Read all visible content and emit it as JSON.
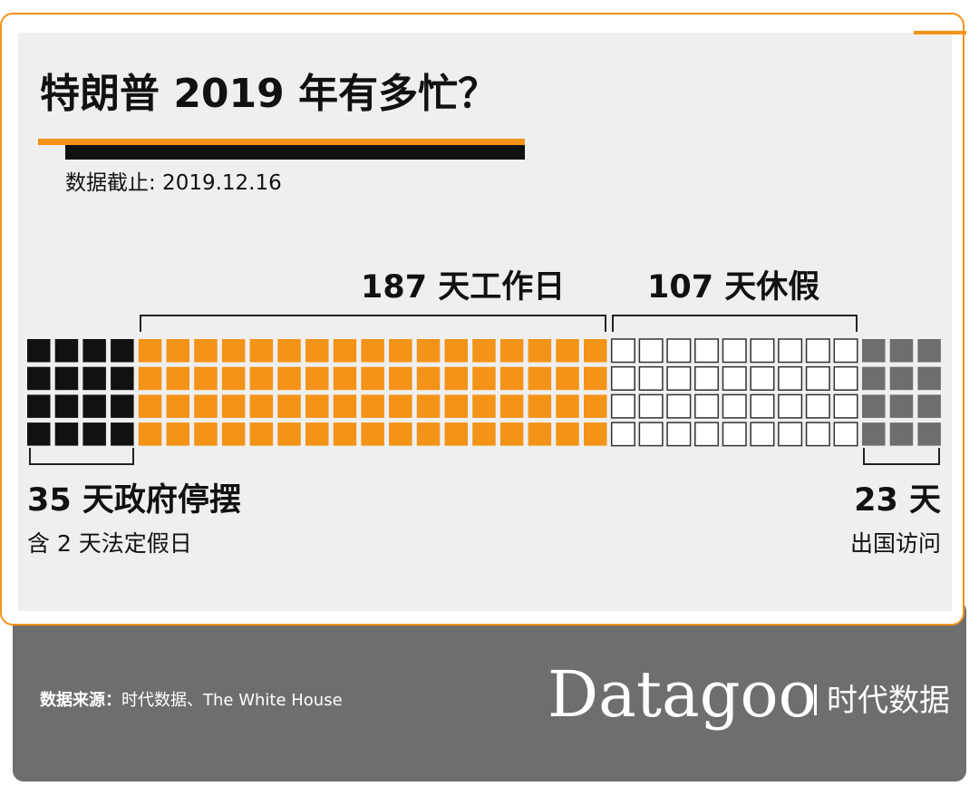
{
  "title": "特朗普 2019 年有多忙？",
  "subtitle": "数据截止: 2019.12.16",
  "labels": {
    "workdays": "187 天工作日",
    "vacation": "107 天休假",
    "shutdown": "35 天政府停摆",
    "shutdown_note": "含 2 天法定假日",
    "abroad": "23 天",
    "abroad_note": "出国访问"
  },
  "colors": {
    "accent": "#f39317",
    "shutdown": "#111111",
    "workdays": "#f39317",
    "vacation_fill": "#ffffff",
    "vacation_stroke": "#333333",
    "abroad": "#6e6e6e"
  },
  "chart_data": {
    "type": "waffle",
    "title": "特朗普 2019 年有多忙？",
    "rows_per_column": 4,
    "unit": "天",
    "categories": [
      "政府停摆",
      "工作日",
      "休假",
      "出国访问"
    ],
    "values": [
      16,
      68,
      36,
      12
    ],
    "labelled_days": [
      35,
      187,
      107,
      23
    ],
    "segments": [
      {
        "name": "政府停摆",
        "days": 35,
        "cells": 16,
        "note": "含 2 天法定假日",
        "color": "#111111"
      },
      {
        "name": "工作日",
        "days": 187,
        "cells": 68,
        "color": "#f39317"
      },
      {
        "name": "休假",
        "days": 107,
        "cells": 36,
        "color": "#ffffff"
      },
      {
        "name": "出国访问",
        "days": 23,
        "cells": 12,
        "color": "#6e6e6e"
      }
    ]
  },
  "footer": {
    "source_key": "数据来源：",
    "source_value": "时代数据、The White House",
    "brand": "Datagoo",
    "brand_cn": "时代数据"
  }
}
